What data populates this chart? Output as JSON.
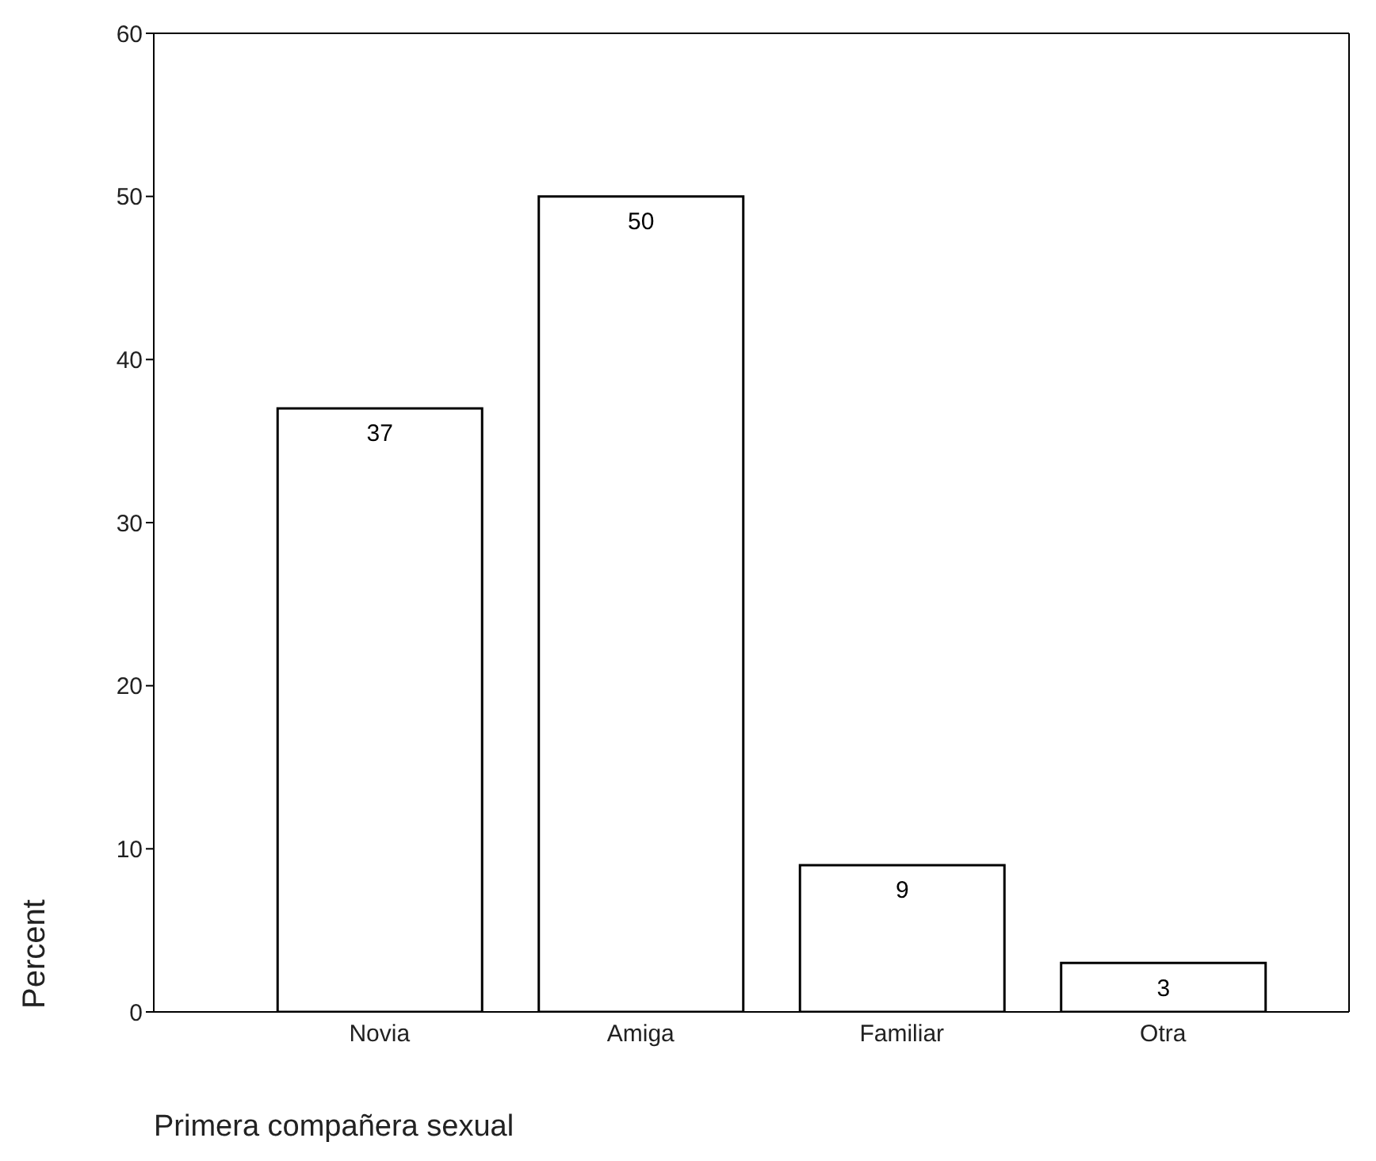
{
  "chart_data": {
    "type": "bar",
    "xlabel": "Primera compañera sexual",
    "ylabel": "Percent",
    "categories": [
      "Novia",
      "Amiga",
      "Familiar",
      "Otra"
    ],
    "values": [
      37,
      50,
      9,
      3
    ],
    "color": "#ffffff",
    "ylim": [
      0,
      60
    ],
    "yticks": [
      0,
      10,
      20,
      30,
      40,
      50,
      60
    ],
    "data_labels": true
  }
}
